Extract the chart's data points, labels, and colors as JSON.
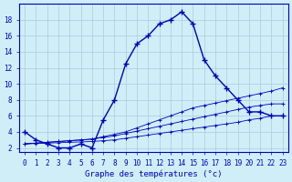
{
  "xlabel": "Graphe des températures (°c)",
  "bg_color": "#d0eef8",
  "grid_color": "#b0c8d8",
  "line_color": "#0000bb",
  "x_main": [
    0,
    1,
    2,
    3,
    4,
    5,
    6,
    7,
    8,
    9,
    10,
    11,
    12,
    13,
    14,
    15,
    16,
    17,
    18,
    19,
    20,
    21,
    22,
    23
  ],
  "y_main": [
    4.0,
    3.0,
    2.5,
    2.0,
    2.0,
    2.5,
    2.0,
    5.5,
    8.0,
    12.5,
    15.0,
    16.0,
    17.5,
    18.0,
    19.0,
    17.5,
    13.0,
    11.0,
    9.5,
    8.0,
    6.5,
    6.5,
    6.0,
    6.0
  ],
  "x_ref": [
    0,
    1,
    2,
    3,
    4,
    5,
    6,
    7,
    8,
    9,
    10,
    11,
    12,
    13,
    14,
    15,
    16,
    17,
    18,
    19,
    20,
    21,
    22,
    23
  ],
  "y_line2": [
    2.5,
    2.6,
    2.7,
    2.8,
    2.9,
    3.0,
    3.1,
    3.4,
    3.7,
    4.0,
    4.5,
    5.0,
    5.5,
    6.0,
    6.5,
    7.0,
    7.3,
    7.6,
    7.9,
    8.2,
    8.5,
    8.8,
    9.1,
    9.5
  ],
  "y_line3": [
    2.5,
    2.6,
    2.7,
    2.8,
    2.9,
    3.0,
    3.1,
    3.3,
    3.5,
    3.8,
    4.1,
    4.4,
    4.7,
    5.0,
    5.3,
    5.6,
    5.9,
    6.2,
    6.5,
    6.8,
    7.1,
    7.3,
    7.5,
    7.5
  ],
  "y_line4": [
    2.5,
    2.55,
    2.6,
    2.65,
    2.7,
    2.75,
    2.8,
    2.9,
    3.0,
    3.2,
    3.4,
    3.6,
    3.8,
    4.0,
    4.2,
    4.4,
    4.6,
    4.8,
    5.0,
    5.2,
    5.5,
    5.7,
    6.0,
    6.0
  ],
  "ylim": [
    1.5,
    20.0
  ],
  "xlim": [
    -0.5,
    23.5
  ],
  "yticks": [
    2,
    4,
    6,
    8,
    10,
    12,
    14,
    16,
    18
  ],
  "xticks": [
    0,
    1,
    2,
    3,
    4,
    5,
    6,
    7,
    8,
    9,
    10,
    11,
    12,
    13,
    14,
    15,
    16,
    17,
    18,
    19,
    20,
    21,
    22,
    23
  ],
  "tick_fontsize": 5.5,
  "xlabel_fontsize": 6.5
}
